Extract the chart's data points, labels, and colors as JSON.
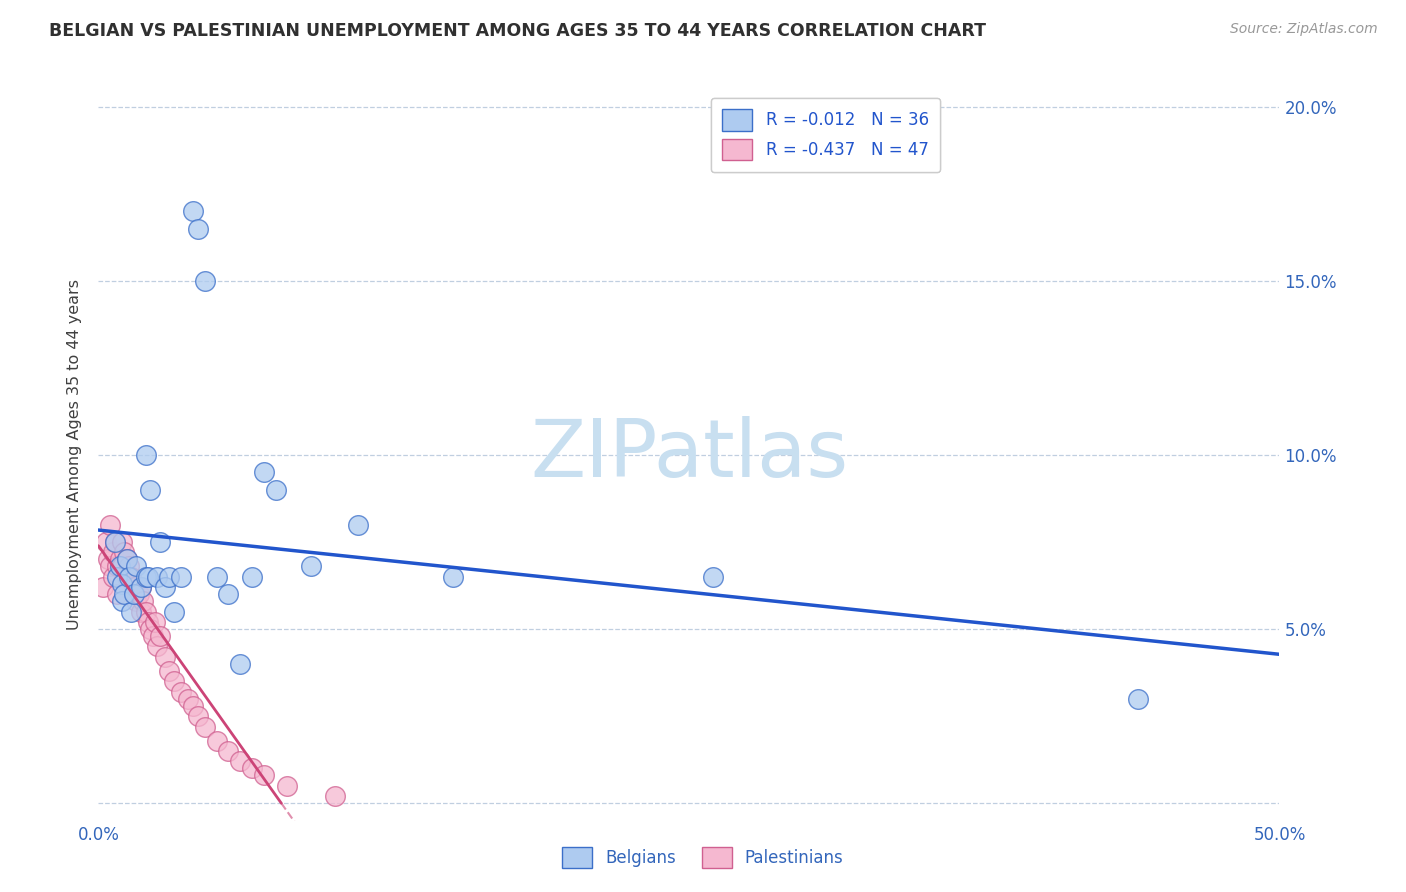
{
  "title": "BELGIAN VS PALESTINIAN UNEMPLOYMENT AMONG AGES 35 TO 44 YEARS CORRELATION CHART",
  "source": "Source: ZipAtlas.com",
  "ylabel": "Unemployment Among Ages 35 to 44 years",
  "xlim": [
    0.0,
    0.5
  ],
  "ylim": [
    -0.005,
    0.205
  ],
  "yticks": [
    0.0,
    0.05,
    0.1,
    0.15,
    0.2
  ],
  "ytick_labels_right": [
    "",
    "5.0%",
    "10.0%",
    "15.0%",
    "20.0%"
  ],
  "xticks": [
    0.0,
    0.05,
    0.1,
    0.15,
    0.2,
    0.25,
    0.3,
    0.35,
    0.4,
    0.45,
    0.5
  ],
  "xtick_labels": [
    "0.0%",
    "",
    "",
    "",
    "",
    "",
    "",
    "",
    "",
    "",
    "50.0%"
  ],
  "belgian_R": -0.012,
  "belgian_N": 36,
  "palestinian_R": -0.437,
  "palestinian_N": 47,
  "belgian_color": "#aecbf0",
  "belgian_edge_color": "#3b6fc9",
  "palestinian_color": "#f5b8d0",
  "palestinian_edge_color": "#d06090",
  "belgian_line_color": "#2255cc",
  "palestinian_line_color": "#cc4477",
  "watermark_color": "#c8dff0",
  "background_color": "#ffffff",
  "grid_color": "#c0cfe0",
  "title_color": "#303030",
  "axis_label_color": "#3366bb",
  "ylabel_color": "#404040",
  "belgian_x": [
    0.007,
    0.008,
    0.009,
    0.01,
    0.01,
    0.011,
    0.012,
    0.013,
    0.014,
    0.015,
    0.016,
    0.018,
    0.02,
    0.02,
    0.021,
    0.022,
    0.025,
    0.026,
    0.028,
    0.03,
    0.032,
    0.035,
    0.04,
    0.042,
    0.045,
    0.05,
    0.055,
    0.06,
    0.065,
    0.07,
    0.075,
    0.09,
    0.11,
    0.15,
    0.26,
    0.44
  ],
  "belgian_y": [
    0.075,
    0.065,
    0.068,
    0.063,
    0.058,
    0.06,
    0.07,
    0.065,
    0.055,
    0.06,
    0.068,
    0.062,
    0.1,
    0.065,
    0.065,
    0.09,
    0.065,
    0.075,
    0.062,
    0.065,
    0.055,
    0.065,
    0.17,
    0.165,
    0.15,
    0.065,
    0.06,
    0.04,
    0.065,
    0.095,
    0.09,
    0.068,
    0.08,
    0.065,
    0.065,
    0.03
  ],
  "palestinian_x": [
    0.002,
    0.003,
    0.004,
    0.005,
    0.005,
    0.006,
    0.006,
    0.007,
    0.008,
    0.008,
    0.009,
    0.01,
    0.01,
    0.011,
    0.012,
    0.012,
    0.013,
    0.014,
    0.015,
    0.015,
    0.016,
    0.017,
    0.018,
    0.018,
    0.019,
    0.02,
    0.021,
    0.022,
    0.023,
    0.024,
    0.025,
    0.026,
    0.028,
    0.03,
    0.032,
    0.035,
    0.038,
    0.04,
    0.042,
    0.045,
    0.05,
    0.055,
    0.06,
    0.065,
    0.07,
    0.08,
    0.1
  ],
  "palestinian_y": [
    0.062,
    0.075,
    0.07,
    0.08,
    0.068,
    0.072,
    0.065,
    0.075,
    0.068,
    0.06,
    0.07,
    0.075,
    0.068,
    0.072,
    0.065,
    0.07,
    0.068,
    0.065,
    0.06,
    0.062,
    0.058,
    0.06,
    0.055,
    0.062,
    0.058,
    0.055,
    0.052,
    0.05,
    0.048,
    0.052,
    0.045,
    0.048,
    0.042,
    0.038,
    0.035,
    0.032,
    0.03,
    0.028,
    0.025,
    0.022,
    0.018,
    0.015,
    0.012,
    0.01,
    0.008,
    0.005,
    0.002
  ]
}
